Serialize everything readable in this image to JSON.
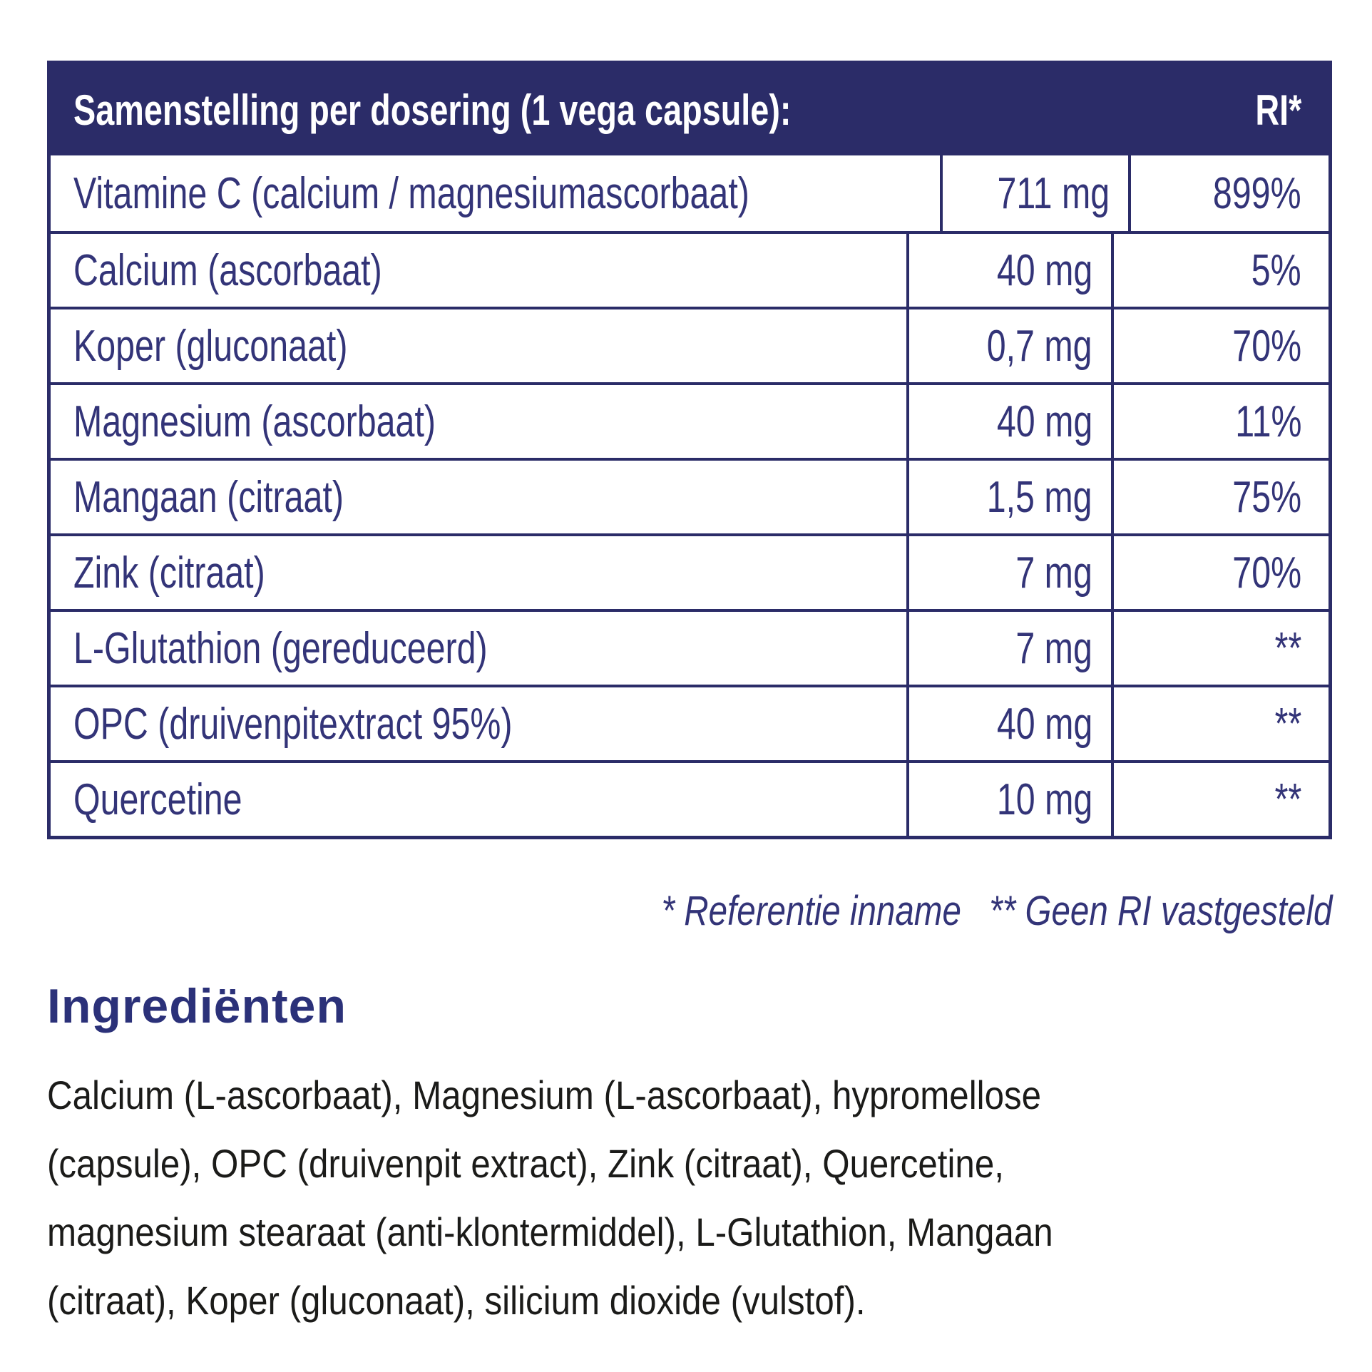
{
  "colors": {
    "navy": "#2b2c68",
    "table_text": "#333478",
    "heading_blue": "#2b3179",
    "body_text": "#1b1b19",
    "header_text": "#ffffff",
    "background": "#ffffff"
  },
  "table": {
    "header": {
      "title": "Samenstelling per dosering (1 vega capsule):",
      "ri_label": "RI*"
    },
    "rows": [
      {
        "name": "Vitamine C (calcium / magnesiumascorbaat)",
        "amount": "711 mg",
        "ri": "899%"
      },
      {
        "name": "Calcium (ascorbaat)",
        "amount": "40 mg",
        "ri": "5%"
      },
      {
        "name": "Koper (gluconaat)",
        "amount": "0,7 mg",
        "ri": "70%"
      },
      {
        "name": "Magnesium (ascorbaat)",
        "amount": "40 mg",
        "ri": "11%"
      },
      {
        "name": "Mangaan (citraat)",
        "amount": "1,5 mg",
        "ri": "75%"
      },
      {
        "name": "Zink (citraat)",
        "amount": "7 mg",
        "ri": "70%"
      },
      {
        "name": "L-Glutathion (gereduceerd)",
        "amount": "7 mg",
        "ri": "**"
      },
      {
        "name": "OPC (druivenpitextract 95%)",
        "amount": "40 mg",
        "ri": "**"
      },
      {
        "name": "Quercetine",
        "amount": "10 mg",
        "ri": "**"
      }
    ]
  },
  "footnote": {
    "reference": "* Referentie inname",
    "no_ri": "** Geen RI vastgesteld"
  },
  "ingredients": {
    "heading": "Ingrediënten",
    "lines": [
      "Calcium (L-ascorbaat), Magnesium (L-ascorbaat), hypromellose",
      "(capsule), OPC (druivenpit extract), Zink (citraat), Quercetine,",
      "magnesium stearaat (anti-klontermiddel), L-Glutathion, Mangaan",
      "(citraat), Koper (gluconaat), silicium dioxide (vulstof)."
    ]
  }
}
